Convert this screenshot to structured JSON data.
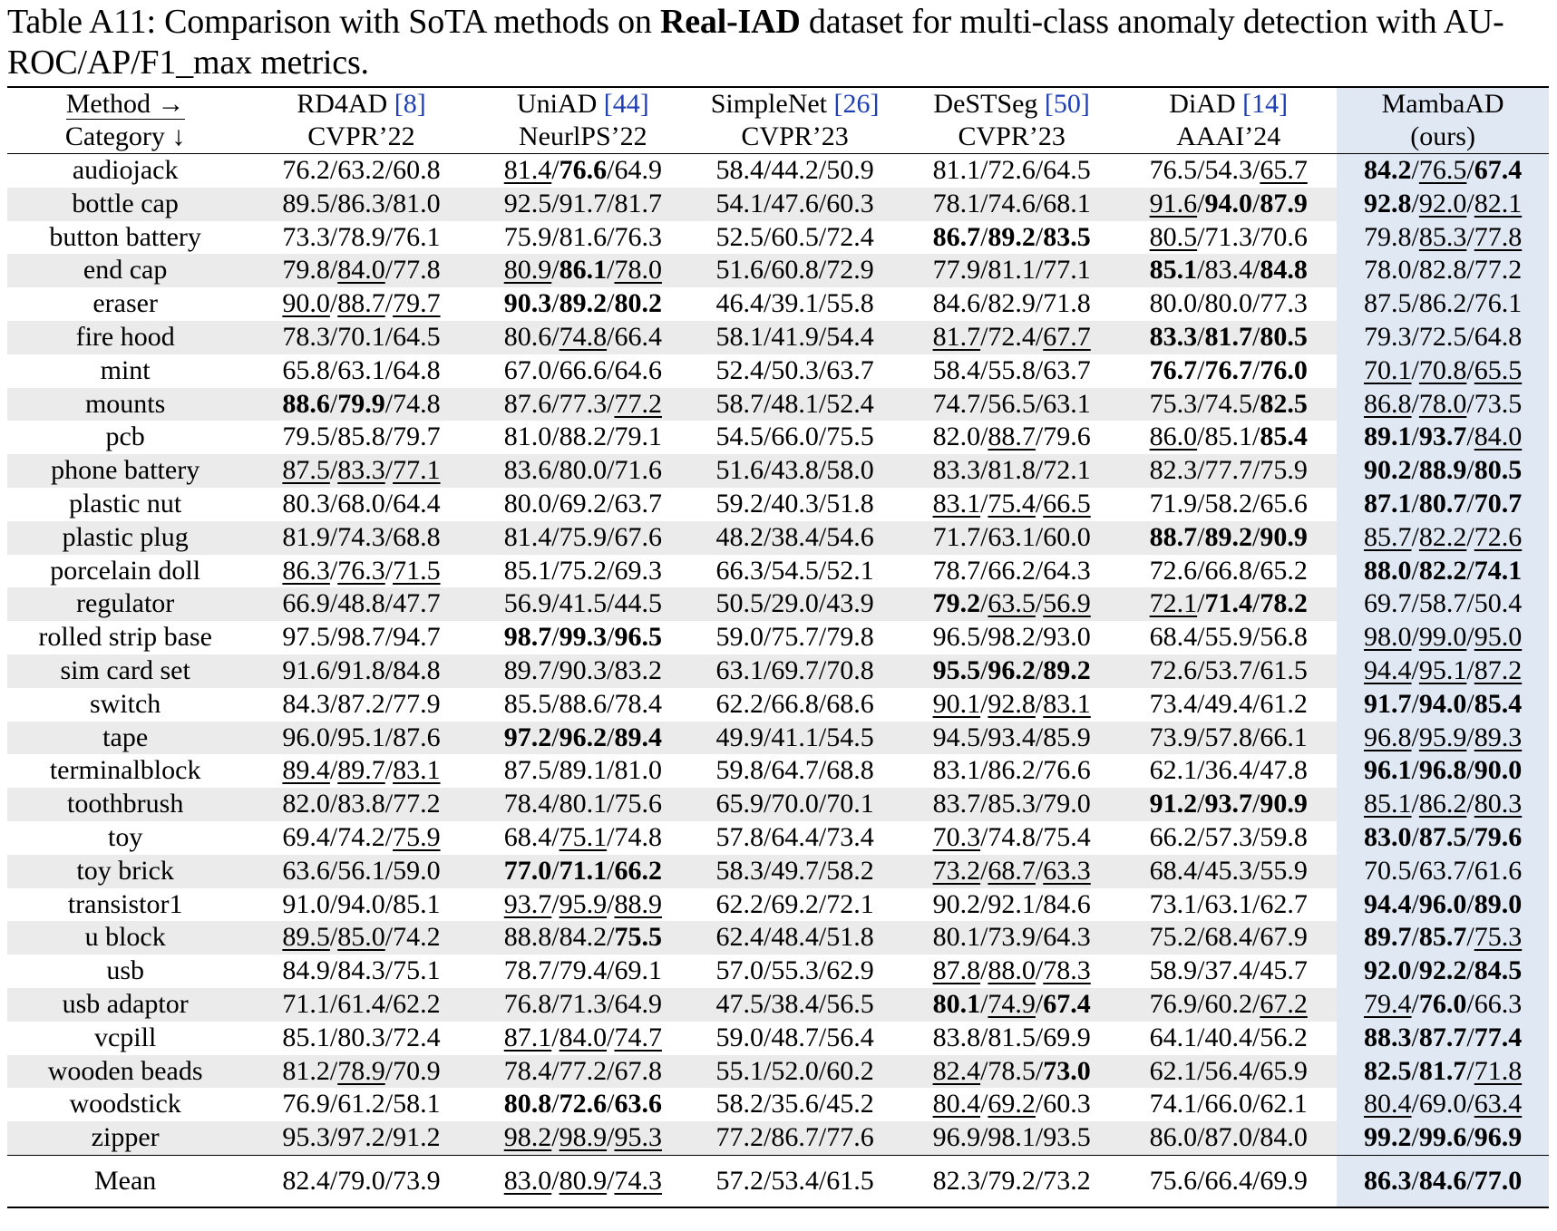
{
  "caption": {
    "prefix": "Table A11: Comparison with SoTA methods on ",
    "bold": "Real-IAD",
    "suffix": " dataset for multi-class anomaly detection with AU-ROC/AP/F1_max metrics."
  },
  "header": {
    "method_label": "Method →",
    "category_label": "Category ↓",
    "methods": [
      {
        "name": "RD4AD ",
        "cite": "[8]",
        "venue": "CVPR’22"
      },
      {
        "name": "UniAD ",
        "cite": "[44]",
        "venue": "NeurlPS’22"
      },
      {
        "name": "SimpleNet ",
        "cite": "[26]",
        "venue": "CVPR’23"
      },
      {
        "name": "DeSTSeg ",
        "cite": "[50]",
        "venue": "CVPR’23"
      },
      {
        "name": "DiAD ",
        "cite": "[14]",
        "venue": "AAAI’24"
      },
      {
        "name": "MambaAD",
        "cite": "",
        "venue": "(ours)"
      }
    ]
  },
  "accent_colors": {
    "ours_column": "#dfe8f3",
    "row_shade": "#ebebeb",
    "citation": "#1f3fb5"
  },
  "rows": [
    {
      "category": "audiojack",
      "cells": [
        [
          "76.2/63.2/60.8",
          ""
        ],
        [
          "81.4/76.6/64.9",
          "ub_"
        ],
        [
          "58.4/44.2/50.9",
          ""
        ],
        [
          "81.1/72.6/64.5",
          ""
        ],
        [
          "76.5/54.3/65.7",
          "__u"
        ],
        [
          "84.2/76.5/67.4",
          "bub"
        ]
      ]
    },
    {
      "category": "bottle cap",
      "cells": [
        [
          "89.5/86.3/81.0",
          ""
        ],
        [
          "92.5/91.7/81.7",
          ""
        ],
        [
          "54.1/47.6/60.3",
          ""
        ],
        [
          "78.1/74.6/68.1",
          ""
        ],
        [
          "91.6/94.0/87.9",
          "ubb"
        ],
        [
          "92.8/92.0/82.1",
          "buu"
        ]
      ]
    },
    {
      "category": "button battery",
      "cells": [
        [
          "73.3/78.9/76.1",
          ""
        ],
        [
          "75.9/81.6/76.3",
          ""
        ],
        [
          "52.5/60.5/72.4",
          ""
        ],
        [
          "86.7/89.2/83.5",
          "bbb"
        ],
        [
          "80.5/71.3/70.6",
          "u__"
        ],
        [
          "79.8/85.3/77.8",
          "_uu"
        ]
      ]
    },
    {
      "category": "end cap",
      "cells": [
        [
          "79.8/84.0/77.8",
          "_u_"
        ],
        [
          "80.9/86.1/78.0",
          "ubu"
        ],
        [
          "51.6/60.8/72.9",
          ""
        ],
        [
          "77.9/81.1/77.1",
          ""
        ],
        [
          "85.1/83.4/84.8",
          "b_b"
        ],
        [
          "78.0/82.8/77.2",
          ""
        ]
      ]
    },
    {
      "category": "eraser",
      "cells": [
        [
          "90.0/88.7/79.7",
          "uuu"
        ],
        [
          "90.3/89.2/80.2",
          "bbb"
        ],
        [
          "46.4/39.1/55.8",
          ""
        ],
        [
          "84.6/82.9/71.8",
          ""
        ],
        [
          "80.0/80.0/77.3",
          ""
        ],
        [
          "87.5/86.2/76.1",
          ""
        ]
      ]
    },
    {
      "category": "fire hood",
      "cells": [
        [
          "78.3/70.1/64.5",
          ""
        ],
        [
          "80.6/74.8/66.4",
          "_u_"
        ],
        [
          "58.1/41.9/54.4",
          ""
        ],
        [
          "81.7/72.4/67.7",
          "u_u"
        ],
        [
          "83.3/81.7/80.5",
          "bbb"
        ],
        [
          "79.3/72.5/64.8",
          ""
        ]
      ]
    },
    {
      "category": "mint",
      "cells": [
        [
          "65.8/63.1/64.8",
          ""
        ],
        [
          "67.0/66.6/64.6",
          ""
        ],
        [
          "52.4/50.3/63.7",
          ""
        ],
        [
          "58.4/55.8/63.7",
          ""
        ],
        [
          "76.7/76.7/76.0",
          "bbb"
        ],
        [
          "70.1/70.8/65.5",
          "uuu"
        ]
      ]
    },
    {
      "category": "mounts",
      "cells": [
        [
          "88.6/79.9/74.8",
          "bb_"
        ],
        [
          "87.6/77.3/77.2",
          "__u"
        ],
        [
          "58.7/48.1/52.4",
          ""
        ],
        [
          "74.7/56.5/63.1",
          ""
        ],
        [
          "75.3/74.5/82.5",
          "__b"
        ],
        [
          "86.8/78.0/73.5",
          "uu_"
        ]
      ]
    },
    {
      "category": "pcb",
      "cells": [
        [
          "79.5/85.8/79.7",
          ""
        ],
        [
          "81.0/88.2/79.1",
          ""
        ],
        [
          "54.5/66.0/75.5",
          ""
        ],
        [
          "82.0/88.7/79.6",
          "_u_"
        ],
        [
          "86.0/85.1/85.4",
          "u_b"
        ],
        [
          "89.1/93.7/84.0",
          "bbu"
        ]
      ]
    },
    {
      "category": "phone battery",
      "cells": [
        [
          "87.5/83.3/77.1",
          "uuu"
        ],
        [
          "83.6/80.0/71.6",
          ""
        ],
        [
          "51.6/43.8/58.0",
          ""
        ],
        [
          "83.3/81.8/72.1",
          ""
        ],
        [
          "82.3/77.7/75.9",
          ""
        ],
        [
          "90.2/88.9/80.5",
          "bbb"
        ]
      ]
    },
    {
      "category": "plastic nut",
      "cells": [
        [
          "80.3/68.0/64.4",
          ""
        ],
        [
          "80.0/69.2/63.7",
          ""
        ],
        [
          "59.2/40.3/51.8",
          ""
        ],
        [
          "83.1/75.4/66.5",
          "uuu"
        ],
        [
          "71.9/58.2/65.6",
          ""
        ],
        [
          "87.1/80.7/70.7",
          "bbb"
        ]
      ]
    },
    {
      "category": "plastic plug",
      "cells": [
        [
          "81.9/74.3/68.8",
          ""
        ],
        [
          "81.4/75.9/67.6",
          ""
        ],
        [
          "48.2/38.4/54.6",
          ""
        ],
        [
          "71.7/63.1/60.0",
          ""
        ],
        [
          "88.7/89.2/90.9",
          "bbb"
        ],
        [
          "85.7/82.2/72.6",
          "uuu"
        ]
      ]
    },
    {
      "category": "porcelain doll",
      "cells": [
        [
          "86.3/76.3/71.5",
          "uuu"
        ],
        [
          "85.1/75.2/69.3",
          ""
        ],
        [
          "66.3/54.5/52.1",
          ""
        ],
        [
          "78.7/66.2/64.3",
          ""
        ],
        [
          "72.6/66.8/65.2",
          ""
        ],
        [
          "88.0/82.2/74.1",
          "bbb"
        ]
      ]
    },
    {
      "category": "regulator",
      "cells": [
        [
          "66.9/48.8/47.7",
          ""
        ],
        [
          "56.9/41.5/44.5",
          ""
        ],
        [
          "50.5/29.0/43.9",
          ""
        ],
        [
          "79.2/63.5/56.9",
          "buu"
        ],
        [
          "72.1/71.4/78.2",
          "ubb"
        ],
        [
          "69.7/58.7/50.4",
          ""
        ]
      ]
    },
    {
      "category": "rolled strip base",
      "cells": [
        [
          "97.5/98.7/94.7",
          ""
        ],
        [
          "98.7/99.3/96.5",
          "bbb"
        ],
        [
          "59.0/75.7/79.8",
          ""
        ],
        [
          "96.5/98.2/93.0",
          ""
        ],
        [
          "68.4/55.9/56.8",
          ""
        ],
        [
          "98.0/99.0/95.0",
          "uuu"
        ]
      ]
    },
    {
      "category": "sim card set",
      "cells": [
        [
          "91.6/91.8/84.8",
          ""
        ],
        [
          "89.7/90.3/83.2",
          ""
        ],
        [
          "63.1/69.7/70.8",
          ""
        ],
        [
          "95.5/96.2/89.2",
          "bbb"
        ],
        [
          "72.6/53.7/61.5",
          ""
        ],
        [
          "94.4/95.1/87.2",
          "uuu"
        ]
      ]
    },
    {
      "category": "switch",
      "cells": [
        [
          "84.3/87.2/77.9",
          ""
        ],
        [
          "85.5/88.6/78.4",
          ""
        ],
        [
          "62.2/66.8/68.6",
          ""
        ],
        [
          "90.1/92.8/83.1",
          "uuu"
        ],
        [
          "73.4/49.4/61.2",
          ""
        ],
        [
          "91.7/94.0/85.4",
          "bbb"
        ]
      ]
    },
    {
      "category": "tape",
      "cells": [
        [
          "96.0/95.1/87.6",
          ""
        ],
        [
          "97.2/96.2/89.4",
          "bbb"
        ],
        [
          "49.9/41.1/54.5",
          ""
        ],
        [
          "94.5/93.4/85.9",
          ""
        ],
        [
          "73.9/57.8/66.1",
          ""
        ],
        [
          "96.8/95.9/89.3",
          "uuu"
        ]
      ]
    },
    {
      "category": "terminalblock",
      "cells": [
        [
          "89.4/89.7/83.1",
          "uuu"
        ],
        [
          "87.5/89.1/81.0",
          ""
        ],
        [
          "59.8/64.7/68.8",
          ""
        ],
        [
          "83.1/86.2/76.6",
          ""
        ],
        [
          "62.1/36.4/47.8",
          ""
        ],
        [
          "96.1/96.8/90.0",
          "bbb"
        ]
      ]
    },
    {
      "category": "toothbrush",
      "cells": [
        [
          "82.0/83.8/77.2",
          ""
        ],
        [
          "78.4/80.1/75.6",
          ""
        ],
        [
          "65.9/70.0/70.1",
          ""
        ],
        [
          "83.7/85.3/79.0",
          ""
        ],
        [
          "91.2/93.7/90.9",
          "bbb"
        ],
        [
          "85.1/86.2/80.3",
          "uuu"
        ]
      ]
    },
    {
      "category": "toy",
      "cells": [
        [
          "69.4/74.2/75.9",
          "__u"
        ],
        [
          "68.4/75.1/74.8",
          "_u_"
        ],
        [
          "57.8/64.4/73.4",
          ""
        ],
        [
          "70.3/74.8/75.4",
          "u__"
        ],
        [
          "66.2/57.3/59.8",
          ""
        ],
        [
          "83.0/87.5/79.6",
          "bbb"
        ]
      ]
    },
    {
      "category": "toy brick",
      "cells": [
        [
          "63.6/56.1/59.0",
          ""
        ],
        [
          "77.0/71.1/66.2",
          "bbb"
        ],
        [
          "58.3/49.7/58.2",
          ""
        ],
        [
          "73.2/68.7/63.3",
          "uuu"
        ],
        [
          "68.4/45.3/55.9",
          ""
        ],
        [
          "70.5/63.7/61.6",
          ""
        ]
      ]
    },
    {
      "category": "transistor1",
      "cells": [
        [
          "91.0/94.0/85.1",
          ""
        ],
        [
          "93.7/95.9/88.9",
          "uuu"
        ],
        [
          "62.2/69.2/72.1",
          ""
        ],
        [
          "90.2/92.1/84.6",
          ""
        ],
        [
          "73.1/63.1/62.7",
          ""
        ],
        [
          "94.4/96.0/89.0",
          "bbb"
        ]
      ]
    },
    {
      "category": "u block",
      "cells": [
        [
          "89.5/85.0/74.2",
          "uu_"
        ],
        [
          "88.8/84.2/75.5",
          "__b"
        ],
        [
          "62.4/48.4/51.8",
          ""
        ],
        [
          "80.1/73.9/64.3",
          ""
        ],
        [
          "75.2/68.4/67.9",
          ""
        ],
        [
          "89.7/85.7/75.3",
          "bbu"
        ]
      ]
    },
    {
      "category": "usb",
      "cells": [
        [
          "84.9/84.3/75.1",
          ""
        ],
        [
          "78.7/79.4/69.1",
          ""
        ],
        [
          "57.0/55.3/62.9",
          ""
        ],
        [
          "87.8/88.0/78.3",
          "uuu"
        ],
        [
          "58.9/37.4/45.7",
          ""
        ],
        [
          "92.0/92.2/84.5",
          "bbb"
        ]
      ]
    },
    {
      "category": "usb adaptor",
      "cells": [
        [
          "71.1/61.4/62.2",
          ""
        ],
        [
          "76.8/71.3/64.9",
          ""
        ],
        [
          "47.5/38.4/56.5",
          ""
        ],
        [
          "80.1/74.9/67.4",
          "bub"
        ],
        [
          "76.9/60.2/67.2",
          "__u"
        ],
        [
          "79.4/76.0/66.3",
          "ub_"
        ]
      ]
    },
    {
      "category": "vcpill",
      "cells": [
        [
          "85.1/80.3/72.4",
          ""
        ],
        [
          "87.1/84.0/74.7",
          "uuu"
        ],
        [
          "59.0/48.7/56.4",
          ""
        ],
        [
          "83.8/81.5/69.9",
          ""
        ],
        [
          "64.1/40.4/56.2",
          ""
        ],
        [
          "88.3/87.7/77.4",
          "bbb"
        ]
      ]
    },
    {
      "category": "wooden beads",
      "cells": [
        [
          "81.2/78.9/70.9",
          "_u_"
        ],
        [
          "78.4/77.2/67.8",
          ""
        ],
        [
          "55.1/52.0/60.2",
          ""
        ],
        [
          "82.4/78.5/73.0",
          "u_b"
        ],
        [
          "62.1/56.4/65.9",
          ""
        ],
        [
          "82.5/81.7/71.8",
          "bbu"
        ]
      ]
    },
    {
      "category": "woodstick",
      "cells": [
        [
          "76.9/61.2/58.1",
          ""
        ],
        [
          "80.8/72.6/63.6",
          "bbb"
        ],
        [
          "58.2/35.6/45.2",
          ""
        ],
        [
          "80.4/69.2/60.3",
          "uu_"
        ],
        [
          "74.1/66.0/62.1",
          ""
        ],
        [
          "80.4/69.0/63.4",
          "u_u"
        ]
      ]
    },
    {
      "category": "zipper",
      "cells": [
        [
          "95.3/97.2/91.2",
          ""
        ],
        [
          "98.2/98.9/95.3",
          "uuu"
        ],
        [
          "77.2/86.7/77.6",
          ""
        ],
        [
          "96.9/98.1/93.5",
          ""
        ],
        [
          "86.0/87.0/84.0",
          ""
        ],
        [
          "99.2/99.6/96.9",
          "bbb"
        ]
      ]
    }
  ],
  "mean": {
    "category": "Mean",
    "cells": [
      [
        "82.4/79.0/73.9",
        ""
      ],
      [
        "83.0/80.9/74.3",
        "uuu"
      ],
      [
        "57.2/53.4/61.5",
        ""
      ],
      [
        "82.3/79.2/73.2",
        ""
      ],
      [
        "75.6/66.4/69.9",
        ""
      ],
      [
        "86.3/84.6/77.0",
        "bbb"
      ]
    ]
  }
}
